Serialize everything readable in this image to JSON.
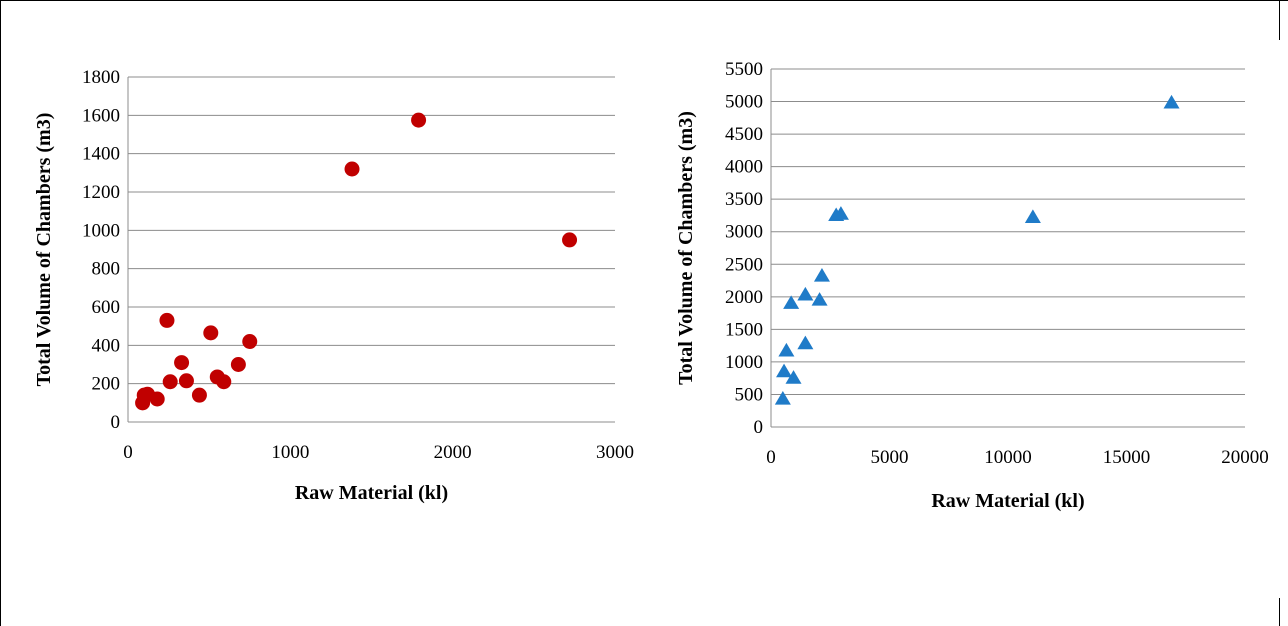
{
  "chart_data": [
    {
      "type": "scatter",
      "xlabel": "Raw Material (kl)",
      "ylabel": "Total Volume of Chambers (m3)",
      "xlim": [
        0,
        3000
      ],
      "ylim": [
        0,
        1800
      ],
      "xticks": [
        "0",
        "1000",
        "2000",
        "3000"
      ],
      "yticks": [
        "0",
        "200",
        "400",
        "600",
        "800",
        "1000",
        "1200",
        "1400",
        "1600",
        "1800"
      ],
      "grid": "horizontal",
      "marker": "circle",
      "color": "#c00000",
      "series": [
        {
          "points": [
            [
              90,
              100
            ],
            [
              100,
              140
            ],
            [
              120,
              145
            ],
            [
              180,
              120
            ],
            [
              240,
              530
            ],
            [
              260,
              210
            ],
            [
              330,
              310
            ],
            [
              360,
              215
            ],
            [
              440,
              140
            ],
            [
              510,
              465
            ],
            [
              550,
              235
            ],
            [
              590,
              210
            ],
            [
              680,
              300
            ],
            [
              750,
              420
            ],
            [
              1380,
              1320
            ],
            [
              1790,
              1575
            ],
            [
              2720,
              950
            ]
          ]
        }
      ]
    },
    {
      "type": "scatter",
      "xlabel": "Raw Material (kl)",
      "ylabel": "Total Volume of Chambers (m3)",
      "xlim": [
        0,
        20000
      ],
      "ylim": [
        0,
        5500
      ],
      "xticks": [
        "0",
        "5000",
        "10000",
        "15000",
        "20000"
      ],
      "yticks": [
        "0",
        "500",
        "1000",
        "1500",
        "2000",
        "2500",
        "3000",
        "3500",
        "4000",
        "4500",
        "5000",
        "5500"
      ],
      "grid": "horizontal",
      "marker": "triangle",
      "color": "#1f7bc8",
      "series": [
        {
          "points": [
            [
              500,
              430
            ],
            [
              550,
              850
            ],
            [
              650,
              1170
            ],
            [
              850,
              1900
            ],
            [
              950,
              750
            ],
            [
              1450,
              1280
            ],
            [
              1450,
              2030
            ],
            [
              2050,
              1950
            ],
            [
              2150,
              2320
            ],
            [
              2750,
              3250
            ],
            [
              2950,
              3270
            ],
            [
              11050,
              3220
            ],
            [
              16900,
              4980
            ]
          ]
        }
      ]
    }
  ]
}
